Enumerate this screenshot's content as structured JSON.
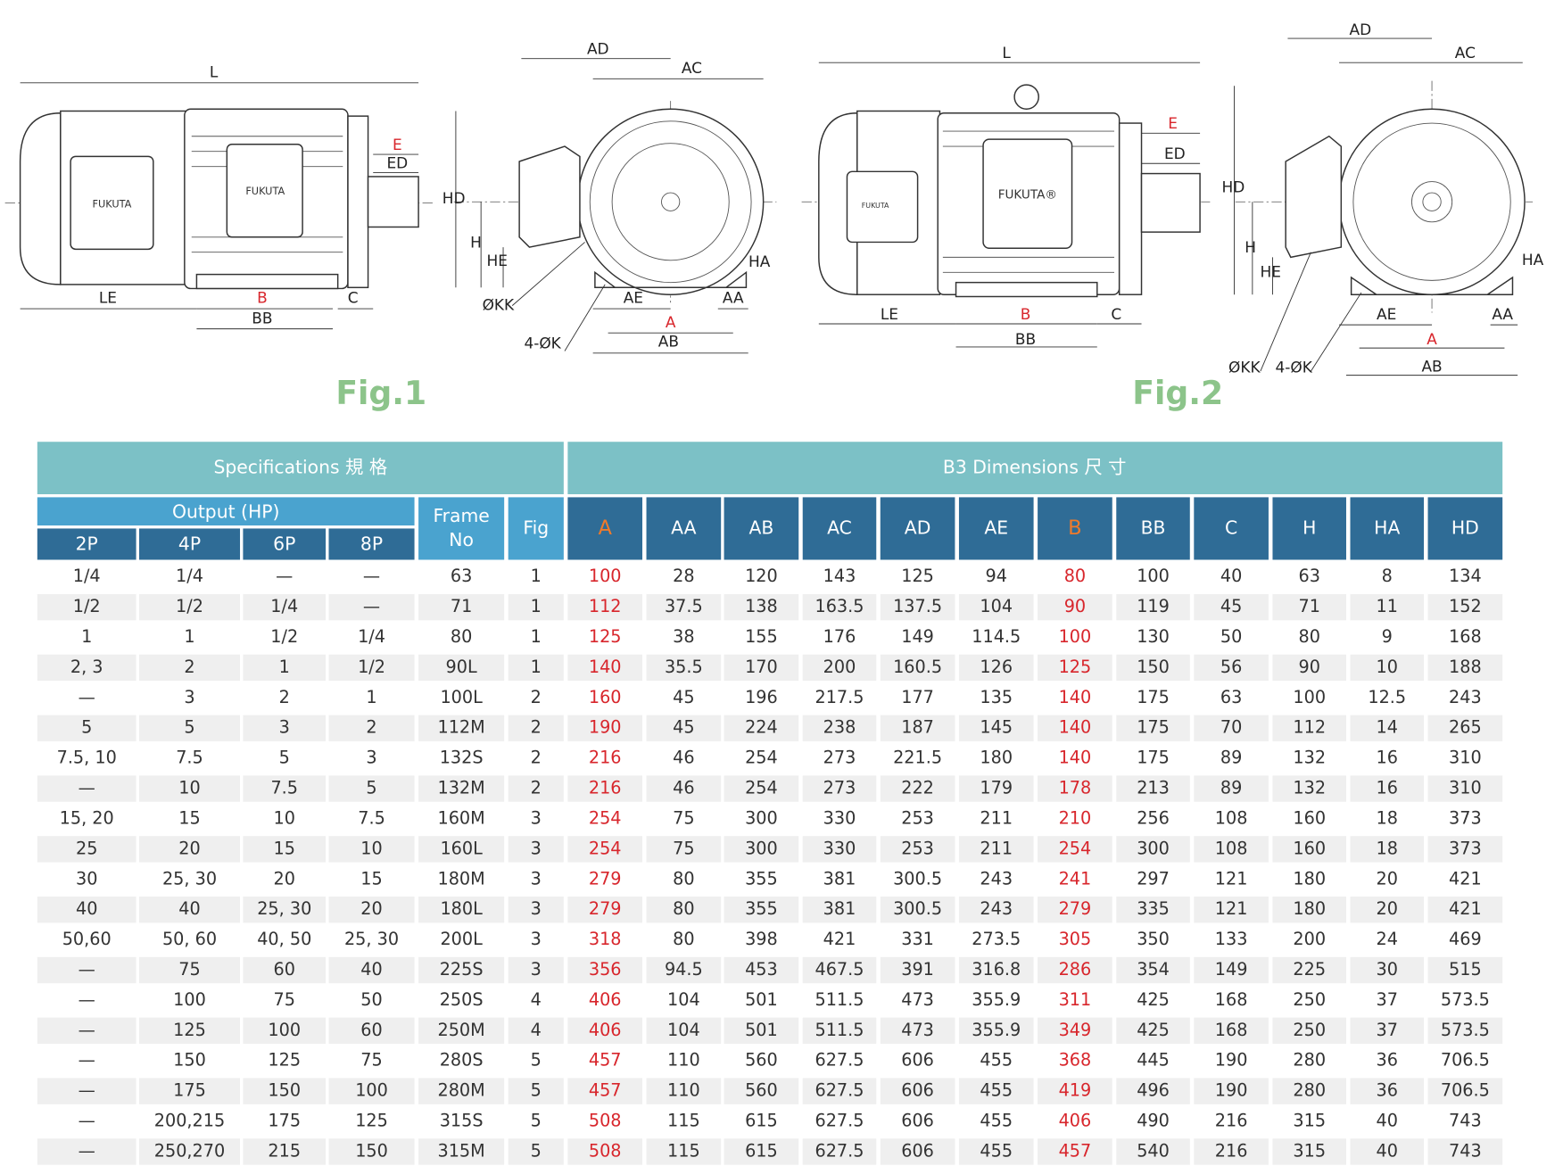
{
  "views": [
    {
      "labels": [
        "L",
        "E",
        "ED",
        "LE",
        "B",
        "C",
        "BB"
      ],
      "brand": [
        "FUKUTA",
        "FUKUTA"
      ]
    },
    {
      "labels": [
        "AD",
        "AC",
        "HD",
        "H",
        "HE",
        "HA",
        "ØKK",
        "AE",
        "AA",
        "A",
        "4-ØK",
        "AB"
      ]
    },
    {
      "labels": [
        "L",
        "E",
        "ED",
        "LE",
        "B",
        "C",
        "BB"
      ],
      "brand": [
        "FUKUTA",
        "FUKUTA®"
      ]
    },
    {
      "labels": [
        "AD",
        "AC",
        "HD",
        "H",
        "HE",
        "HA",
        "ØKK",
        "4-ØK",
        "AE",
        "AA",
        "A",
        "AB"
      ]
    }
  ],
  "captions": [
    "Fig.1",
    "Fig.2"
  ],
  "table": {
    "group_headers": [
      "Specifications 規 格",
      "B3 Dimensions 尺 寸"
    ],
    "output_header": "Output (HP)",
    "poles": [
      "2P",
      "4P",
      "6P",
      "8P"
    ],
    "frame_header": [
      "Frame",
      "No"
    ],
    "fig_header": "Fig",
    "dimension_headers": [
      "A",
      "AA",
      "AB",
      "AC",
      "AD",
      "AE",
      "B",
      "BB",
      "C",
      "H",
      "HA",
      "HD"
    ],
    "rows": [
      [
        "1/4",
        "1/4",
        "—",
        "—",
        "63",
        "1",
        "100",
        "28",
        "120",
        "143",
        "125",
        "94",
        "80",
        "100",
        "40",
        "63",
        "8",
        "134"
      ],
      [
        "1/2",
        "1/2",
        "1/4",
        "—",
        "71",
        "1",
        "112",
        "37.5",
        "138",
        "163.5",
        "137.5",
        "104",
        "90",
        "119",
        "45",
        "71",
        "11",
        "152"
      ],
      [
        "1",
        "1",
        "1/2",
        "1/4",
        "80",
        "1",
        "125",
        "38",
        "155",
        "176",
        "149",
        "114.5",
        "100",
        "130",
        "50",
        "80",
        "9",
        "168"
      ],
      [
        "2, 3",
        "2",
        "1",
        "1/2",
        "90L",
        "1",
        "140",
        "35.5",
        "170",
        "200",
        "160.5",
        "126",
        "125",
        "150",
        "56",
        "90",
        "10",
        "188"
      ],
      [
        "—",
        "3",
        "2",
        "1",
        "100L",
        "2",
        "160",
        "45",
        "196",
        "217.5",
        "177",
        "135",
        "140",
        "175",
        "63",
        "100",
        "12.5",
        "243"
      ],
      [
        "5",
        "5",
        "3",
        "2",
        "112M",
        "2",
        "190",
        "45",
        "224",
        "238",
        "187",
        "145",
        "140",
        "175",
        "70",
        "112",
        "14",
        "265"
      ],
      [
        "7.5, 10",
        "7.5",
        "5",
        "3",
        "132S",
        "2",
        "216",
        "46",
        "254",
        "273",
        "221.5",
        "180",
        "140",
        "175",
        "89",
        "132",
        "16",
        "310"
      ],
      [
        "—",
        "10",
        "7.5",
        "5",
        "132M",
        "2",
        "216",
        "46",
        "254",
        "273",
        "222",
        "179",
        "178",
        "213",
        "89",
        "132",
        "16",
        "310"
      ],
      [
        "15, 20",
        "15",
        "10",
        "7.5",
        "160M",
        "3",
        "254",
        "75",
        "300",
        "330",
        "253",
        "211",
        "210",
        "256",
        "108",
        "160",
        "18",
        "373"
      ],
      [
        "25",
        "20",
        "15",
        "10",
        "160L",
        "3",
        "254",
        "75",
        "300",
        "330",
        "253",
        "211",
        "254",
        "300",
        "108",
        "160",
        "18",
        "373"
      ],
      [
        "30",
        "25, 30",
        "20",
        "15",
        "180M",
        "3",
        "279",
        "80",
        "355",
        "381",
        "300.5",
        "243",
        "241",
        "297",
        "121",
        "180",
        "20",
        "421"
      ],
      [
        "40",
        "40",
        "25, 30",
        "20",
        "180L",
        "3",
        "279",
        "80",
        "355",
        "381",
        "300.5",
        "243",
        "279",
        "335",
        "121",
        "180",
        "20",
        "421"
      ],
      [
        "50,60",
        "50, 60",
        "40, 50",
        "25, 30",
        "200L",
        "3",
        "318",
        "80",
        "398",
        "421",
        "331",
        "273.5",
        "305",
        "350",
        "133",
        "200",
        "24",
        "469"
      ],
      [
        "—",
        "75",
        "60",
        "40",
        "225S",
        "3",
        "356",
        "94.5",
        "453",
        "467.5",
        "391",
        "316.8",
        "286",
        "354",
        "149",
        "225",
        "30",
        "515"
      ],
      [
        "—",
        "100",
        "75",
        "50",
        "250S",
        "4",
        "406",
        "104",
        "501",
        "511.5",
        "473",
        "355.9",
        "311",
        "425",
        "168",
        "250",
        "37",
        "573.5"
      ],
      [
        "—",
        "125",
        "100",
        "60",
        "250M",
        "4",
        "406",
        "104",
        "501",
        "511.5",
        "473",
        "355.9",
        "349",
        "425",
        "168",
        "250",
        "37",
        "573.5"
      ],
      [
        "—",
        "150",
        "125",
        "75",
        "280S",
        "5",
        "457",
        "110",
        "560",
        "627.5",
        "606",
        "455",
        "368",
        "445",
        "190",
        "280",
        "36",
        "706.5"
      ],
      [
        "—",
        "175",
        "150",
        "100",
        "280M",
        "5",
        "457",
        "110",
        "560",
        "627.5",
        "606",
        "455",
        "419",
        "496",
        "190",
        "280",
        "36",
        "706.5"
      ],
      [
        "—",
        "200,215",
        "175",
        "125",
        "315S",
        "5",
        "508",
        "115",
        "615",
        "627.5",
        "606",
        "455",
        "406",
        "490",
        "216",
        "315",
        "40",
        "743"
      ],
      [
        "—",
        "250,270",
        "215",
        "150",
        "315M",
        "5",
        "508",
        "115",
        "615",
        "627.5",
        "606",
        "455",
        "457",
        "540",
        "216",
        "315",
        "40",
        "743"
      ]
    ]
  }
}
